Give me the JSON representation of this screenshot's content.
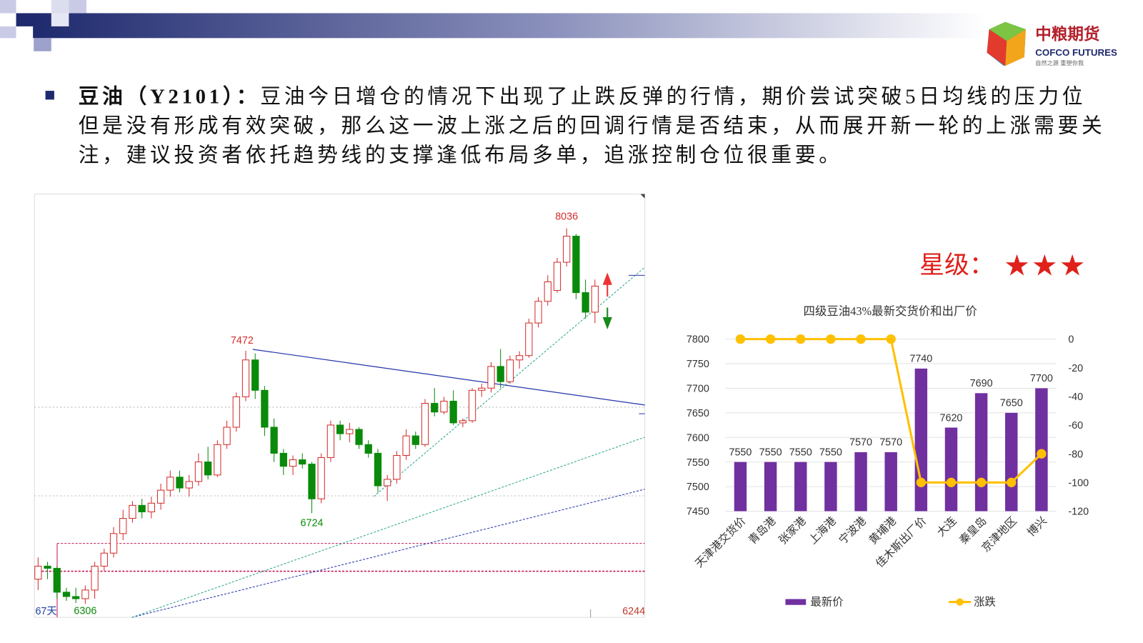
{
  "logo": {
    "name": "中粮期货",
    "english": "COFCO FUTURES",
    "slogan": "自然之源 重塑你我"
  },
  "bullets": [
    {
      "title": "豆油（Y2101）：",
      "lines": [
        "豆油今日增仓的情况下出现了止跌反弹的行情，期价尝试突破5日均线的压力位",
        "但是没有形成有效突破，那么这一波上涨之后的回调行情是否结束，从而展开新一轮的上涨需要关",
        "注，建议投资者依托趋势线的支撑逢低布局多单，追涨控制仓位很重要。"
      ]
    }
  ],
  "rating": {
    "label": "星级：",
    "stars": "★★★"
  },
  "chart_data": [
    {
      "type": "candlestick",
      "period_label": "67天",
      "ylim": [
        6244,
        8194
      ],
      "up_color": "#d42c2c",
      "down_color": "#0a8a0a",
      "open": [
        6420,
        6480,
        6470,
        6360,
        6340,
        6330,
        6370,
        6480,
        6540,
        6630,
        6700,
        6760,
        6730,
        6770,
        6830,
        6890,
        6840,
        6870,
        6960,
        6900,
        7040,
        7120,
        7260,
        7430,
        7290,
        7120,
        7000,
        6940,
        6970,
        6950,
        6790,
        6980,
        7130,
        7090,
        7110,
        7040,
        7000,
        6850,
        6880,
        6990,
        7080,
        7040,
        7230,
        7190,
        7240,
        7140,
        7150,
        7290,
        7300,
        7400,
        7330,
        7430,
        7450,
        7600,
        7700,
        7750,
        7880,
        8000,
        7740,
        7650
      ],
      "high": [
        6520,
        6500,
        6480,
        6380,
        6380,
        6390,
        6500,
        6560,
        6660,
        6740,
        6780,
        6790,
        6800,
        6860,
        6920,
        6920,
        6900,
        7000,
        7030,
        7060,
        7150,
        7280,
        7472,
        7460,
        7310,
        7160,
        7020,
        6990,
        7000,
        6960,
        7000,
        7150,
        7150,
        7140,
        7120,
        7060,
        7020,
        6900,
        7010,
        7110,
        7100,
        7250,
        7300,
        7260,
        7290,
        7160,
        7300,
        7320,
        7420,
        7480,
        7450,
        7470,
        7620,
        7720,
        7820,
        7900,
        8036,
        8010,
        7800,
        7800
      ],
      "low": [
        6370,
        6420,
        6330,
        6320,
        6310,
        6306,
        6330,
        6460,
        6520,
        6600,
        6680,
        6700,
        6700,
        6740,
        6800,
        6820,
        6800,
        6850,
        6880,
        6890,
        7020,
        7100,
        7240,
        7250,
        7080,
        6960,
        6900,
        6900,
        6930,
        6724,
        6770,
        6960,
        7060,
        7050,
        7020,
        6980,
        6820,
        6780,
        6860,
        6970,
        7020,
        7030,
        7170,
        7180,
        7130,
        7120,
        7140,
        7260,
        7280,
        7300,
        7320,
        7390,
        7440,
        7580,
        7680,
        7740,
        7860,
        7710,
        7620,
        7600
      ],
      "close": [
        6480,
        6470,
        6360,
        6340,
        6330,
        6370,
        6480,
        6540,
        6630,
        6700,
        6760,
        6730,
        6770,
        6830,
        6890,
        6840,
        6870,
        6960,
        6900,
        7040,
        7120,
        7260,
        7430,
        7290,
        7120,
        7000,
        6940,
        6970,
        6950,
        6790,
        6980,
        7130,
        7090,
        7110,
        7040,
        7000,
        6850,
        6880,
        6990,
        7080,
        7040,
        7230,
        7190,
        7240,
        7140,
        7150,
        7290,
        7300,
        7400,
        7330,
        7430,
        7450,
        7600,
        7700,
        7790,
        7880,
        8000,
        7740,
        7650,
        7770
      ]
    },
    {
      "type": "bar_line",
      "title": "四级豆油43%最新交货价和出厂价",
      "categories": [
        "天津港交货价",
        "青岛港",
        "张家港",
        "上海港",
        "宁波港",
        "黄埔港",
        "佳木斯出厂价",
        "大连",
        "秦皇岛",
        "京津地区",
        "博兴"
      ],
      "series": [
        {
          "name": "最新价",
          "color": "#7030a0",
          "values": [
            7550,
            7550,
            7550,
            7550,
            7570,
            7570,
            7740,
            7620,
            7690,
            7650,
            7700
          ]
        },
        {
          "name": "涨跌",
          "color": "#ffc000",
          "axis": "y2",
          "values": [
            0,
            0,
            0,
            0,
            0,
            0,
            -100,
            -100,
            -100,
            -100,
            -80
          ]
        }
      ],
      "ylim": [
        7450,
        7800
      ],
      "yticks": [
        7450,
        7500,
        7550,
        7600,
        7650,
        7700,
        7750,
        7800
      ],
      "y2lim": [
        -120,
        0
      ],
      "y2ticks": [
        -120,
        -100,
        -80,
        -60,
        -40,
        -20,
        0
      ],
      "grid": true
    }
  ]
}
